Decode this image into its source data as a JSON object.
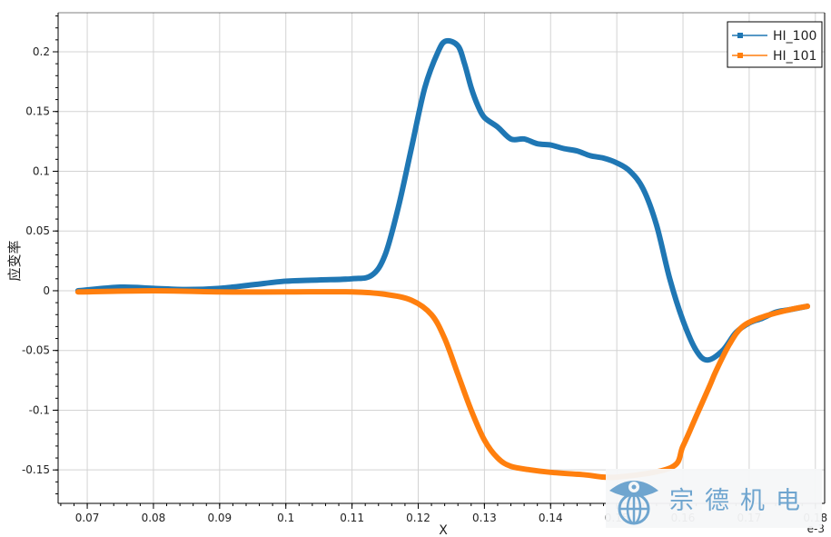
{
  "chart_data": {
    "type": "line",
    "title": "",
    "xlabel": "X",
    "ylabel": "应变率",
    "x_exponent_label": "e-3",
    "xlim": [
      0.0656,
      0.1814
    ],
    "ylim": [
      -0.178,
      0.2327
    ],
    "xticks": [
      0.07,
      0.08,
      0.09,
      0.1,
      0.11,
      0.12,
      0.13,
      0.14,
      0.15,
      0.16,
      0.17,
      0.18
    ],
    "xtick_labels": [
      "0.07",
      "0.08",
      "0.09",
      "0.1",
      "0.11",
      "0.12",
      "0.13",
      "0.14",
      "0.15",
      "0.16",
      "0.17",
      "0.18"
    ],
    "yticks": [
      -0.15,
      -0.1,
      -0.05,
      0,
      0.05,
      0.1,
      0.15,
      0.2
    ],
    "ytick_labels": [
      "-0.15",
      "-0.1",
      "-0.05",
      "0",
      "0.05",
      "0.1",
      "0.15",
      "0.2"
    ],
    "grid": true,
    "legend_position": "top-right",
    "series": [
      {
        "name": "HI_100",
        "color": "#1f77b4",
        "x": [
          0.0686,
          0.075,
          0.08,
          0.085,
          0.09,
          0.095,
          0.1,
          0.105,
          0.11,
          0.113,
          0.115,
          0.117,
          0.119,
          0.121,
          0.123,
          0.1242,
          0.126,
          0.127,
          0.128,
          0.129,
          0.13,
          0.132,
          0.134,
          0.136,
          0.138,
          0.14,
          0.142,
          0.144,
          0.146,
          0.148,
          0.15,
          0.152,
          0.154,
          0.156,
          0.158,
          0.16,
          0.162,
          0.1637,
          0.166,
          0.168,
          0.17,
          0.172,
          0.174,
          0.176,
          0.1788
        ],
        "y": [
          0,
          0.003,
          0.002,
          0.001,
          0.002,
          0.005,
          0.008,
          0.009,
          0.01,
          0.013,
          0.03,
          0.07,
          0.12,
          0.17,
          0.2,
          0.209,
          0.205,
          0.19,
          0.17,
          0.155,
          0.145,
          0.137,
          0.127,
          0.127,
          0.123,
          0.122,
          0.119,
          0.117,
          0.113,
          0.111,
          0.107,
          0.1,
          0.085,
          0.055,
          0.01,
          -0.025,
          -0.05,
          -0.058,
          -0.05,
          -0.035,
          -0.027,
          -0.023,
          -0.018,
          -0.016,
          -0.013
        ]
      },
      {
        "name": "HI_101",
        "color": "#ff7f0e",
        "x": [
          0.0686,
          0.08,
          0.09,
          0.1,
          0.11,
          0.115,
          0.119,
          0.122,
          0.124,
          0.126,
          0.128,
          0.13,
          0.132,
          0.134,
          0.137,
          0.14,
          0.145,
          0.15,
          0.1582,
          0.16,
          0.162,
          0.164,
          0.165,
          0.167,
          0.169,
          0.172,
          0.176,
          0.1788
        ],
        "y": [
          -0.001,
          0,
          -0.001,
          -0.001,
          -0.001,
          -0.003,
          -0.008,
          -0.02,
          -0.04,
          -0.07,
          -0.1,
          -0.125,
          -0.14,
          -0.147,
          -0.15,
          -0.152,
          -0.154,
          -0.156,
          -0.148,
          -0.13,
          -0.105,
          -0.08,
          -0.067,
          -0.045,
          -0.03,
          -0.022,
          -0.016,
          -0.013
        ]
      }
    ]
  },
  "watermark": {
    "text": "宗德机电",
    "color": "#6fa5cf"
  }
}
